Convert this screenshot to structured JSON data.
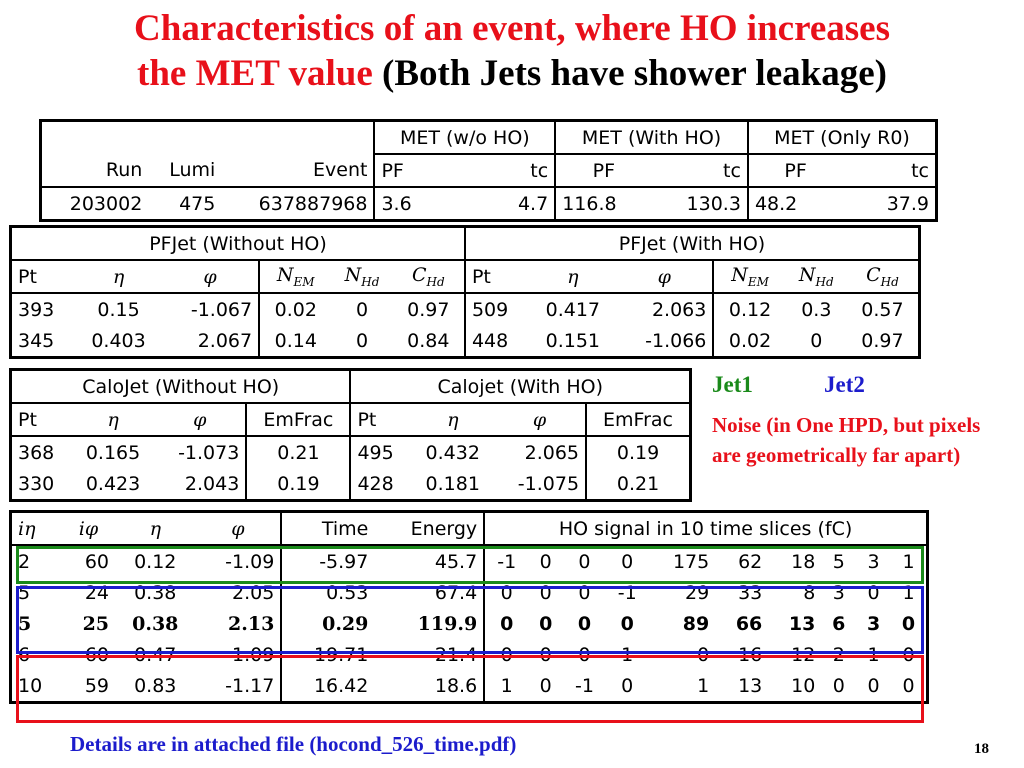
{
  "title": {
    "red_line1": "Characteristics of  an event, where HO increases",
    "red_line2": "the MET value",
    "black_part": "(Both Jets have shower leakage)"
  },
  "met_table": {
    "group_headers": [
      "MET (w/o HO)",
      "MET (With HO)",
      "MET (Only R0)"
    ],
    "col_headers": [
      "Run",
      "Lumi",
      "Event",
      "PF",
      "tc",
      "PF",
      "tc",
      "PF",
      "tc"
    ],
    "row": [
      "203002",
      "475",
      "637887968",
      "3.6",
      "4.7",
      "116.8",
      "130.3",
      "48.2",
      "37.9"
    ]
  },
  "pfjet_table": {
    "group_headers": [
      "PFJet (Without HO)",
      "PFJet (With HO)"
    ],
    "col_headers": [
      "Pt",
      "η",
      "φ",
      "N_EM",
      "N_Hd",
      "C_Hd",
      "Pt",
      "η",
      "φ",
      "N_EM",
      "N_Hd",
      "C_Hd"
    ],
    "rows": [
      [
        "393",
        "0.15",
        "-1.067",
        "0.02",
        "0",
        "0.97",
        "509",
        "0.417",
        "2.063",
        "0.12",
        "0.3",
        "0.57"
      ],
      [
        "345",
        "0.403",
        "2.067",
        "0.14",
        "0",
        "0.84",
        "448",
        "0.151",
        "-1.066",
        "0.02",
        "0",
        "0.97"
      ]
    ]
  },
  "calojet_table": {
    "group_headers": [
      "CaloJet (Without HO)",
      "Calojet (With HO)"
    ],
    "col_headers": [
      "Pt",
      "η",
      "φ",
      "EmFrac",
      "Pt",
      "η",
      "φ",
      "EmFrac"
    ],
    "rows": [
      [
        "368",
        "0.165",
        "-1.073",
        "0.21",
        "495",
        "0.432",
        "2.065",
        "0.19"
      ],
      [
        "330",
        "0.423",
        "2.043",
        "0.19",
        "428",
        "0.181",
        "-1.075",
        "0.21"
      ]
    ]
  },
  "ho_table": {
    "col_headers": [
      "iη",
      "iφ",
      "η",
      "φ",
      "Time",
      "Energy"
    ],
    "signal_header": "HO signal in 10 time slices (fC)",
    "rows": [
      [
        "2",
        "60",
        "0.12",
        "-1.09",
        "-5.97",
        "45.7",
        "-1",
        "0",
        "0",
        "0",
        "175",
        "62",
        "18",
        "5",
        "3",
        "1"
      ],
      [
        "5",
        "24",
        "0.38",
        "2.05",
        "0.53",
        "67.4",
        "0",
        "0",
        "0",
        "-1",
        "29",
        "33",
        "8",
        "3",
        "0",
        "1"
      ],
      [
        "5",
        "25",
        "0.38",
        "2.13",
        "0.29",
        "119.9",
        "0",
        "0",
        "0",
        "0",
        "89",
        "66",
        "13",
        "6",
        "3",
        "0"
      ],
      [
        "6",
        "60",
        "0.47",
        "-1.09",
        "19.71",
        "21.4",
        "0",
        "0",
        "0",
        "1",
        "0",
        "16",
        "12",
        "2",
        "1",
        "0"
      ],
      [
        "10",
        "59",
        "0.83",
        "-1.17",
        "16.42",
        "18.6",
        "1",
        "0",
        "-1",
        "0",
        "1",
        "13",
        "10",
        "0",
        "0",
        "0"
      ]
    ]
  },
  "legend": {
    "jet1": "Jet1",
    "jet2": "Jet2",
    "noise": "Noise (in One HPD, but pixels are geometrically far apart)"
  },
  "colors": {
    "jet1": "#1a8a1a",
    "jet2": "#1c1ccc",
    "noise": "#e8101a"
  },
  "footer": "Details are in attached file (hocond_526_time.pdf)",
  "page_number": "18"
}
